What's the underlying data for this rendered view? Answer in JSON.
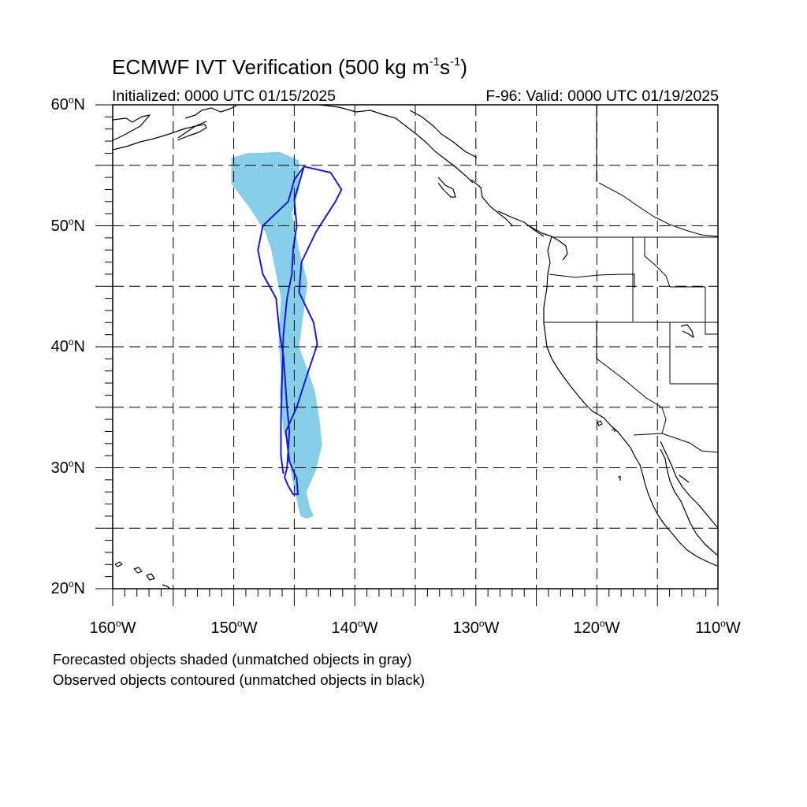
{
  "title": {
    "prefix": "ECMWF IVT Verification (500 kg m",
    "exp1": "-1",
    "mid": "s",
    "exp2": "-1",
    "suffix": ")"
  },
  "subtitle_left": "Initialized: 0000 UTC 01/15/2025",
  "subtitle_right": "F-96: Valid: 0000 UTC 01/19/2025",
  "lat_labels": [
    {
      "deg": "60",
      "hem": "N"
    },
    {
      "deg": "50",
      "hem": "N"
    },
    {
      "deg": "40",
      "hem": "N"
    },
    {
      "deg": "30",
      "hem": "N"
    },
    {
      "deg": "20",
      "hem": "N"
    }
  ],
  "lon_labels": [
    {
      "deg": "160",
      "hem": "W"
    },
    {
      "deg": "150",
      "hem": "W"
    },
    {
      "deg": "140",
      "hem": "W"
    },
    {
      "deg": "130",
      "hem": "W"
    },
    {
      "deg": "120",
      "hem": "W"
    },
    {
      "deg": "110",
      "hem": "W"
    }
  ],
  "legend_note_1": "Forecasted objects shaded (unmatched objects in gray)",
  "legend_note_2": "Observed objects contoured (unmatched objects in black)",
  "map": {
    "lon_range": [
      -160,
      -110
    ],
    "lat_range": [
      20,
      60
    ],
    "grid_interval_deg": 5,
    "forecast_color": "#87CEE8",
    "observed_color": "#1a1adc",
    "forecast_object": [
      [
        -150.2,
        55.6
      ],
      [
        -148.9,
        56.0
      ],
      [
        -146.2,
        56.1
      ],
      [
        -144.6,
        55.4
      ],
      [
        -144.6,
        53.0
      ],
      [
        -145.2,
        51.0
      ],
      [
        -144.6,
        48.0
      ],
      [
        -143.9,
        45.3
      ],
      [
        -144.6,
        40.0
      ],
      [
        -143.3,
        36.4
      ],
      [
        -142.9,
        33.8
      ],
      [
        -142.7,
        31.9
      ],
      [
        -143.2,
        29.8
      ],
      [
        -144.0,
        28.0
      ],
      [
        -143.7,
        26.7
      ],
      [
        -143.4,
        26.0
      ],
      [
        -144.0,
        25.8
      ],
      [
        -144.5,
        26.0
      ],
      [
        -145.3,
        29.7
      ],
      [
        -145.5,
        32.0
      ],
      [
        -145.9,
        33.0
      ],
      [
        -146.2,
        36.2
      ],
      [
        -146.1,
        38.0
      ],
      [
        -146.3,
        40.5
      ],
      [
        -146.1,
        44.0
      ],
      [
        -146.9,
        48.0
      ],
      [
        -147.4,
        49.5
      ],
      [
        -148.7,
        51.5
      ],
      [
        -150.2,
        53.5
      ]
    ],
    "observed_object": [
      [
        -144.2,
        54.9
      ],
      [
        -142.0,
        54.4
      ],
      [
        -141.1,
        53.0
      ],
      [
        -141.6,
        52.0
      ],
      [
        -143.2,
        49.5
      ],
      [
        -144.4,
        47.0
      ],
      [
        -144.6,
        44.5
      ],
      [
        -143.4,
        42.0
      ],
      [
        -143.1,
        40.2
      ],
      [
        -144.0,
        37.5
      ],
      [
        -144.8,
        35.0
      ],
      [
        -145.7,
        33.0
      ],
      [
        -145.4,
        30.5
      ],
      [
        -144.8,
        29.1
      ],
      [
        -144.7,
        27.8
      ],
      [
        -145.1,
        27.8
      ],
      [
        -145.5,
        28.5
      ],
      [
        -145.8,
        29.2
      ],
      [
        -145.6,
        30.0
      ],
      [
        -145.4,
        33.0
      ],
      [
        -145.6,
        35.0
      ],
      [
        -145.9,
        39.3
      ],
      [
        -146.2,
        41.0
      ],
      [
        -146.5,
        44.0
      ],
      [
        -147.6,
        46.0
      ],
      [
        -148.0,
        48.0
      ],
      [
        -147.6,
        50.0
      ],
      [
        -145.5,
        52.0
      ],
      [
        -145.0,
        53.8
      ]
    ],
    "observed_inner_line": [
      [
        -144.2,
        54.9
      ],
      [
        -144.6,
        53.5
      ],
      [
        -145.0,
        52.2
      ],
      [
        -144.8,
        50.0
      ],
      [
        -145.1,
        48.0
      ],
      [
        -145.2,
        46.0
      ],
      [
        -145.6,
        44.0
      ],
      [
        -145.9,
        41.0
      ],
      [
        -146.0,
        37.5
      ],
      [
        -146.1,
        34.0
      ],
      [
        -146.1,
        31.0
      ],
      [
        -145.9,
        29.5
      ]
    ]
  }
}
